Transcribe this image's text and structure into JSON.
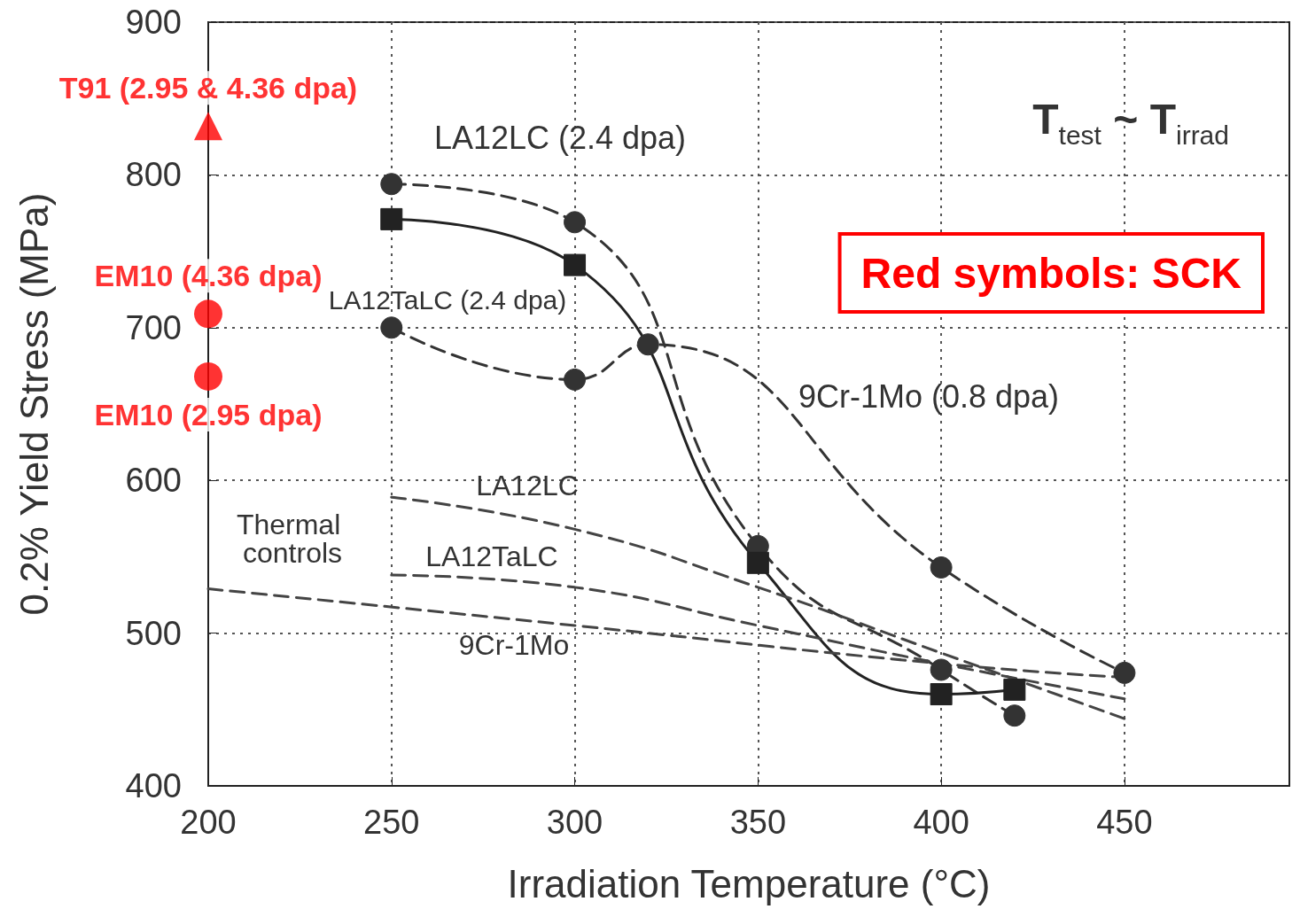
{
  "chart_data": {
    "type": "line",
    "xlabel": "Irradiation Temperature (°C)",
    "ylabel": "0.2% Yield Stress (MPa)",
    "xlim": [
      200,
      495
    ],
    "xticks": [
      200,
      250,
      300,
      350,
      400,
      450
    ],
    "ylim": [
      400,
      900
    ],
    "yticks": [
      400,
      500,
      600,
      700,
      800,
      900
    ],
    "grid": true,
    "series": [
      {
        "color": "#333333",
        "marker": "circle",
        "line_style": "dashed",
        "x": [
          250,
          300,
          350,
          400,
          420
        ],
        "values": [
          794,
          769,
          557,
          476,
          446
        ]
      },
      {
        "color": "#222222",
        "marker": "square",
        "line_style": "solid",
        "x": [
          250,
          300,
          350,
          400,
          420
        ],
        "values": [
          771,
          741,
          546,
          460,
          463
        ]
      },
      {
        "color": "#333333",
        "marker": "circle",
        "line_style": "dashed",
        "x": [
          250,
          300,
          320,
          400,
          450
        ],
        "values": [
          700,
          666,
          689,
          543,
          474
        ]
      },
      {
        "color": "#444444",
        "marker": "none",
        "line_style": "dashed",
        "x": [
          250,
          300,
          350,
          400,
          450
        ],
        "values": [
          589,
          568,
          530,
          487,
          444
        ]
      },
      {
        "color": "#444444",
        "marker": "none",
        "line_style": "dashed",
        "x": [
          250,
          300,
          350,
          400,
          450
        ],
        "values": [
          538,
          530,
          505,
          480,
          457
        ]
      },
      {
        "color": "#444444",
        "marker": "none",
        "line_style": "dashed",
        "x": [
          200,
          300,
          400,
          450
        ],
        "values": [
          529,
          505,
          480,
          471
        ]
      },
      {
        "type": "scatter",
        "name": "T91 (2.95 & 4.36 dpa)",
        "color": "#ff0000",
        "marker": "triangle",
        "x": [
          200
        ],
        "values": [
          832
        ]
      },
      {
        "type": "scatter",
        "name": "EM10 (4.36 dpa)",
        "color": "#ff0000",
        "marker": "circle",
        "x": [
          200
        ],
        "values": [
          709
        ]
      },
      {
        "type": "scatter",
        "name": "EM10 (2.95 dpa)",
        "color": "#ff0000",
        "marker": "circle",
        "x": [
          200
        ],
        "values": [
          668
        ]
      }
    ],
    "annotations": [
      "LA12LC (2.4 dpa)",
      "LA12TaLC (2.4 dpa)",
      "9Cr-1Mo (0.8 dpa)",
      "Thermal controls",
      "LA12LC",
      "LA12TaLC",
      "9Cr-1Mo",
      "T$_{test}$ ~ T$_{irrad}$",
      "Red symbols: SCK"
    ]
  }
}
